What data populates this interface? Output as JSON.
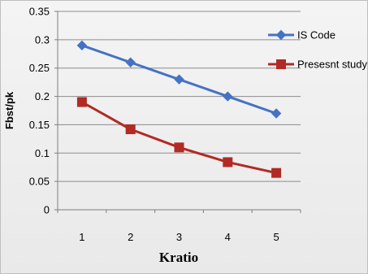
{
  "chart_data": {
    "type": "line",
    "title": "",
    "xlabel": "Kratio",
    "ylabel": "Fbst/pk",
    "categories": [
      "1",
      "2",
      "3",
      "4",
      "5"
    ],
    "ylim": [
      0,
      0.35
    ],
    "yticks": [
      "0",
      "0.05",
      "0.1",
      "0.15",
      "0.2",
      "0.25",
      "0.3",
      "0.35"
    ],
    "grid": true,
    "legend_position": "right",
    "series": [
      {
        "name": "IS Code",
        "values": [
          0.29,
          0.26,
          0.23,
          0.2,
          0.17
        ],
        "color": "#4472c4",
        "marker": "diamond"
      },
      {
        "name": "Presesnt study",
        "values": [
          0.19,
          0.142,
          0.11,
          0.084,
          0.065
        ],
        "color": "#b22a24",
        "marker": "square"
      }
    ]
  }
}
